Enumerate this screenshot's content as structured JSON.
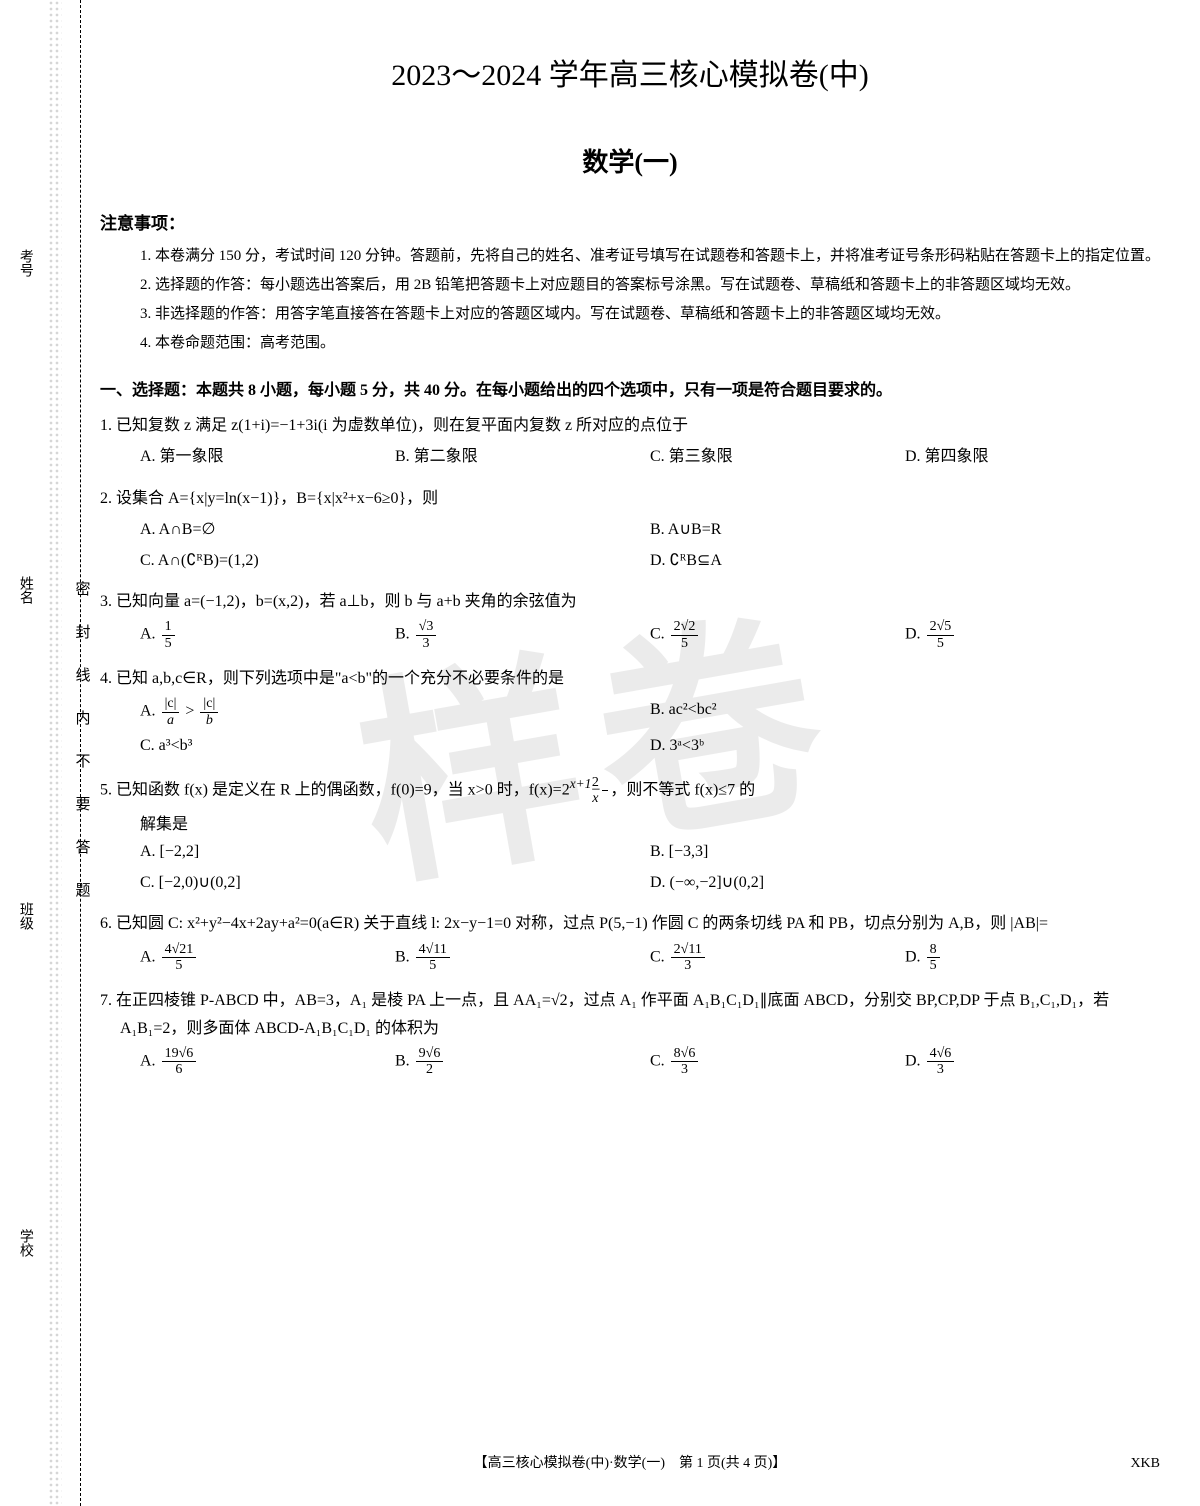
{
  "watermark": "样卷",
  "binding": {
    "side_labels": [
      "考号",
      "姓名",
      "班级",
      "学校"
    ],
    "seal_text": "密封线内不要答题"
  },
  "header": {
    "main_title": "2023～2024 学年高三核心模拟卷(中)",
    "sub_title": "数学(一)"
  },
  "notice": {
    "title": "注意事项：",
    "items": [
      "1. 本卷满分 150 分，考试时间 120 分钟。答题前，先将自己的姓名、准考证号填写在试题卷和答题卡上，并将准考证号条形码粘贴在答题卡上的指定位置。",
      "2. 选择题的作答：每小题选出答案后，用 2B 铅笔把答题卡上对应题目的答案标号涂黑。写在试题卷、草稿纸和答题卡上的非答题区域均无效。",
      "3. 非选择题的作答：用答字笔直接答在答题卡上对应的答题区域内。写在试题卷、草稿纸和答题卡上的非答题区域均无效。",
      "4. 本卷命题范围：高考范围。"
    ]
  },
  "section1": {
    "title": "一、选择题：本题共 8 小题，每小题 5 分，共 40 分。在每小题给出的四个选项中，只有一项是符合题目要求的。"
  },
  "q1": {
    "num": "1.",
    "stem": "已知复数 z 满足 z(1+i)=−1+3i(i 为虚数单位)，则在复平面内复数 z 所对应的点位于",
    "A": "A. 第一象限",
    "B": "B. 第二象限",
    "C": "C. 第三象限",
    "D": "D. 第四象限"
  },
  "q2": {
    "num": "2.",
    "stem": "设集合 A={x|y=ln(x−1)}，B={x|x²+x−6≥0}，则",
    "A": "A. A∩B=∅",
    "B": "B. A∪B=R",
    "C": "C. A∩(∁ᴿB)=(1,2)",
    "D": "D. ∁ᴿB⊆A"
  },
  "q3": {
    "num": "3.",
    "stem": "已知向量 a=(−1,2)，b=(x,2)，若 a⊥b，则 b 与 a+b 夹角的余弦值为",
    "A_num": "1",
    "A_den": "5",
    "B_num": "√3",
    "B_den": "3",
    "C_num": "2√2",
    "C_den": "5",
    "D_num": "2√5",
    "D_den": "5"
  },
  "q4": {
    "num": "4.",
    "stem": "已知 a,b,c∈R，则下列选项中是\"a<b\"的一个充分不必要条件的是",
    "A_l": "|c|",
    "A_la": "a",
    "A_r": "|c|",
    "A_rb": "b",
    "B": "B. ac²<bc²",
    "C": "C. a³<b³",
    "D": "D. 3ᵃ<3ᵇ"
  },
  "q5": {
    "num": "5.",
    "stem_p1": "已知函数 f(x) 是定义在 R 上的偶函数，f(0)=9，当 x>0 时，f(x)=2",
    "stem_exp": "x+1",
    "stem_p2": "−",
    "stem_fnum": "2",
    "stem_fden": "x",
    "stem_p3": "，则不等式 f(x)≤7 的",
    "stem_line2": "解集是",
    "A": "A. [−2,2]",
    "B": "B. [−3,3]",
    "C": "C. [−2,0)∪(0,2]",
    "D": "D. (−∞,−2]∪(0,2]"
  },
  "q6": {
    "num": "6.",
    "stem": "已知圆 C: x²+y²−4x+2ay+a²=0(a∈R) 关于直线 l: 2x−y−1=0 对称，过点 P(5,−1) 作圆 C 的两条切线 PA 和 PB，切点分别为 A,B，则 |AB|=",
    "A_num": "4√21",
    "A_den": "5",
    "B_num": "4√11",
    "B_den": "5",
    "C_num": "2√11",
    "C_den": "3",
    "D_num": "8",
    "D_den": "5"
  },
  "q7": {
    "num": "7.",
    "stem": "在正四棱锥 P-ABCD 中，AB=3，A₁ 是棱 PA 上一点，且 AA₁=√2，过点 A₁ 作平面 A₁B₁C₁D₁∥底面 ABCD，分别交 BP,CP,DP 于点 B₁,C₁,D₁，若 A₁B₁=2，则多面体 ABCD-A₁B₁C₁D₁ 的体积为",
    "A_num": "19√6",
    "A_den": "6",
    "B_num": "9√6",
    "B_den": "2",
    "C_num": "8√6",
    "C_den": "3",
    "D_num": "4√6",
    "D_den": "3"
  },
  "footer": {
    "center": "【高三核心模拟卷(中)·数学(一)　第 1 页(共 4 页)】",
    "right": "XKB"
  }
}
